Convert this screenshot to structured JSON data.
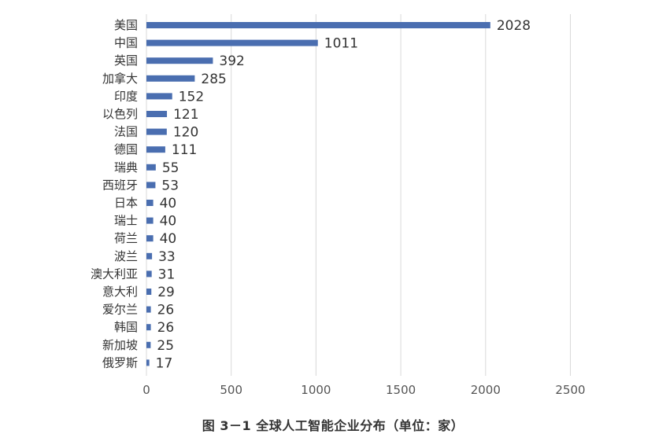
{
  "chart_data": {
    "type": "bar",
    "orientation": "horizontal",
    "categories": [
      "美国",
      "中国",
      "英国",
      "加拿大",
      "印度",
      "以色列",
      "法国",
      "德国",
      "瑞典",
      "西班牙",
      "日本",
      "瑞士",
      "荷兰",
      "波兰",
      "澳大利亚",
      "意大利",
      "爱尔兰",
      "韩国",
      "新加坡",
      "俄罗斯"
    ],
    "values": [
      2028,
      1011,
      392,
      285,
      152,
      121,
      120,
      111,
      55,
      53,
      40,
      40,
      40,
      33,
      31,
      29,
      26,
      26,
      25,
      17
    ],
    "xlim": [
      0,
      2500
    ],
    "xticks": [
      0,
      500,
      1000,
      1500,
      2000,
      2500
    ],
    "grid": "vertical",
    "bar_color": "#4a6eb0",
    "title": ""
  },
  "caption": "图 3－1  全球人工智能企业分布（单位：家）"
}
